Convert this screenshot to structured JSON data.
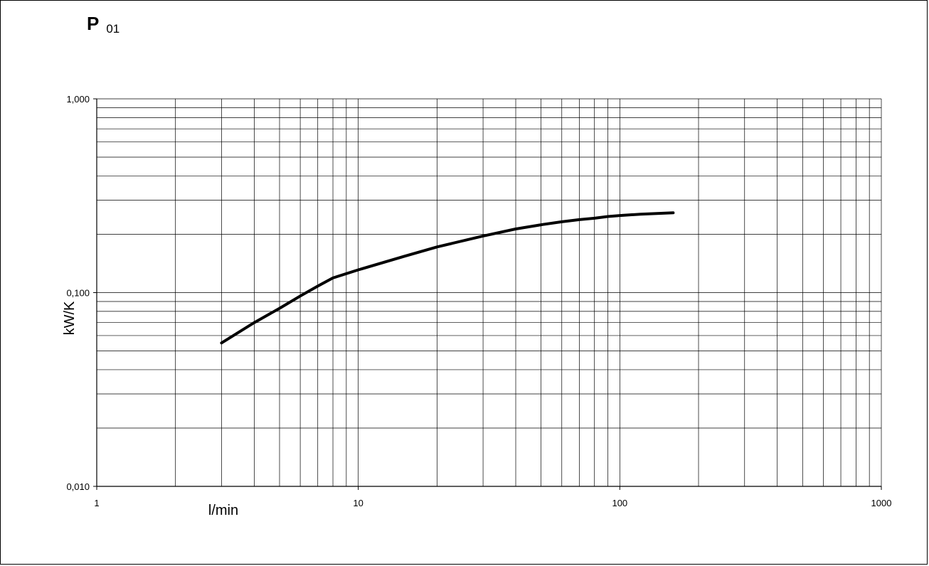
{
  "header": {
    "title_main": "P",
    "title_sub": "01"
  },
  "chart_data": {
    "type": "line",
    "title": "P 01",
    "xlabel": "l/min",
    "ylabel": "kW/K",
    "xscale": "log",
    "yscale": "log",
    "xlim": [
      1,
      1000
    ],
    "ylim": [
      0.01,
      1
    ],
    "x_ticks": [
      1,
      10,
      100,
      1000
    ],
    "x_tick_labels": [
      "1",
      "10",
      "100",
      "1000"
    ],
    "y_ticks": [
      0.01,
      0.1,
      1
    ],
    "y_tick_labels": [
      "0,010",
      "0,100",
      "1,000"
    ],
    "grid": true,
    "series": [
      {
        "x": [
          3,
          4,
          5,
          6,
          7,
          8,
          10,
          15,
          20,
          30,
          40,
          50,
          60,
          70,
          80,
          90,
          100,
          120,
          160
        ],
        "y": [
          0.055,
          0.07,
          0.083,
          0.096,
          0.108,
          0.119,
          0.131,
          0.154,
          0.172,
          0.196,
          0.213,
          0.224,
          0.232,
          0.238,
          0.242,
          0.247,
          0.25,
          0.254,
          0.258
        ]
      }
    ],
    "colors": {
      "line": "#000000",
      "grid": "#000000"
    }
  }
}
